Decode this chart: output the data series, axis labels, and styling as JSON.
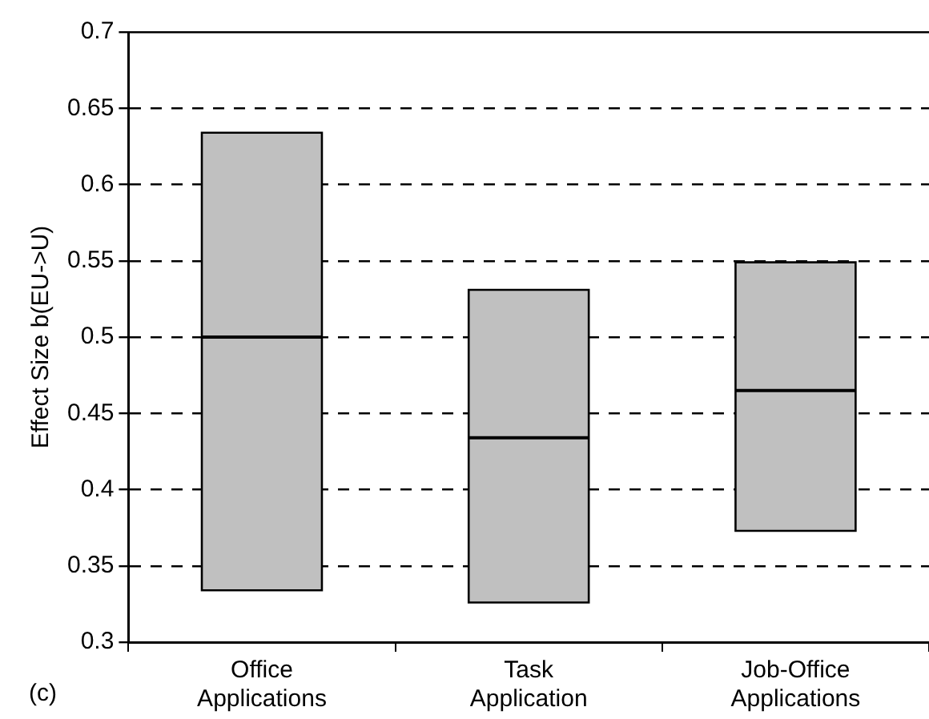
{
  "chart_data": {
    "type": "box",
    "ylabel": "Effect Size b(EU->U)",
    "annotations": [
      "(c)"
    ],
    "categories": [
      "Office Applications",
      "Task Application",
      "Job-Office Applications"
    ],
    "color": "#c0c0c0",
    "boxes": [
      {
        "low": 0.334,
        "q1": 0.334,
        "median": 0.5,
        "q3": 0.634,
        "high": 0.634
      },
      {
        "low": 0.326,
        "q1": 0.326,
        "median": 0.434,
        "q3": 0.531,
        "high": 0.531
      },
      {
        "low": 0.373,
        "q1": 0.373,
        "median": 0.465,
        "q3": 0.549,
        "high": 0.549
      }
    ],
    "ylim": [
      0.3,
      0.7
    ],
    "yticks": [
      0.3,
      0.35,
      0.4,
      0.45,
      0.5,
      0.55,
      0.6,
      0.65,
      0.7
    ],
    "grid": "y",
    "legend": false
  }
}
